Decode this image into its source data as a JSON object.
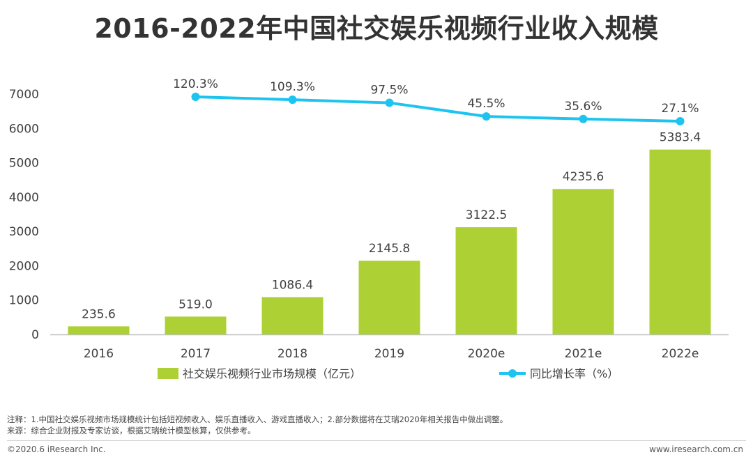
{
  "colors": {
    "bar": "#add135",
    "line": "#1ec4ef",
    "axis": "#bfbfbf",
    "text": "#404040"
  },
  "chart_data": {
    "type": "bar",
    "title": "2016-2022年中国社交娱乐视频行业收入规模",
    "categories": [
      "2016",
      "2017",
      "2018",
      "2019",
      "2020e",
      "2021e",
      "2022e"
    ],
    "series": [
      {
        "name": "社交娱乐视频行业市场规模（亿元）",
        "type": "bar",
        "values": [
          235.6,
          519.0,
          1086.4,
          2145.8,
          3122.5,
          4235.6,
          5383.4
        ],
        "labels": [
          "235.6",
          "519.0",
          "1086.4",
          "2145.8",
          "3122.5",
          "4235.6",
          "5383.4"
        ]
      },
      {
        "name": "同比增长率（%）",
        "type": "line",
        "values": [
          null,
          120.3,
          109.3,
          97.5,
          45.5,
          35.6,
          27.1
        ],
        "labels": [
          "",
          "120.3%",
          "109.3%",
          "97.5%",
          "45.5%",
          "35.6%",
          "27.1%"
        ]
      }
    ],
    "yticks": [
      "0",
      "1000",
      "2000",
      "3000",
      "4000",
      "5000",
      "6000",
      "7000"
    ],
    "ylim": [
      0,
      7000
    ],
    "xlabel": "",
    "ylabel": "",
    "legend_position": "bottom-center"
  },
  "notes": {
    "note": "注释：1.中国社交娱乐视频市场规模统计包括短视频收入、娱乐直播收入、游戏直播收入；2.部分数据将在艾瑞2020年相关报告中做出调整。",
    "source": "来源：综合企业财报及专家访谈，根据艾瑞统计模型核算，仅供参考。"
  },
  "footer": {
    "copyright": "©2020.6 iResearch Inc.",
    "site": "www.iresearch.com.cn"
  }
}
